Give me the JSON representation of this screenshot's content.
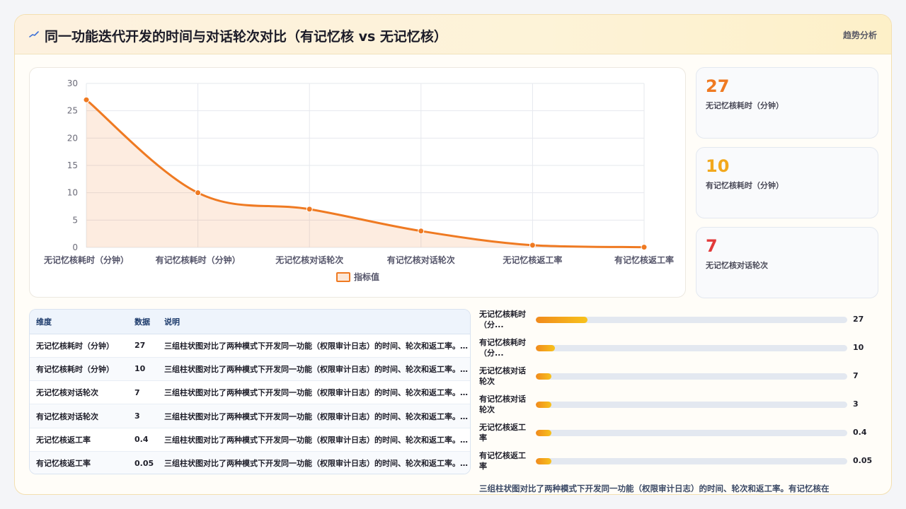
{
  "header": {
    "icon": "trend-line-icon",
    "title": "同一功能迭代开发的时间与对话轮次对比（有记忆核 vs 无记忆核）",
    "tag": "趋势分析"
  },
  "chart_data": {
    "type": "line",
    "categories": [
      "无记忆核耗时（分钟）",
      "有记忆核耗时（分钟）",
      "无记忆核对话轮次",
      "有记忆核对话轮次",
      "无记忆核返工率",
      "有记忆核返工率"
    ],
    "series": [
      {
        "name": "指标值",
        "values": [
          27,
          10,
          7,
          3,
          0.4,
          0.05
        ],
        "color": "#ef7a22"
      }
    ],
    "y_ticks": [
      "0",
      "5",
      "10",
      "15",
      "20",
      "25",
      "30"
    ],
    "ylim": [
      0,
      30
    ],
    "grid": true,
    "legend": "bottom"
  },
  "stats": [
    {
      "value": "27",
      "label": "无记忆核耗时（分钟）",
      "color": "#ef7a22"
    },
    {
      "value": "10",
      "label": "有记忆核耗时（分钟）",
      "color": "#f2a81d"
    },
    {
      "value": "7",
      "label": "无记忆核对话轮次",
      "color": "#e23a3a"
    }
  ],
  "table": {
    "headers": [
      "维度",
      "数据",
      "说明"
    ],
    "rows": [
      [
        "无记忆核耗时（分钟）",
        "27",
        "三组柱状图对比了两种模式下开发同一功能（权限审计日志）的时间、轮次和返工率。有记忆核在"
      ],
      [
        "有记忆核耗时（分钟）",
        "10",
        "三组柱状图对比了两种模式下开发同一功能（权限审计日志）的时间、轮次和返工率。有记忆核在"
      ],
      [
        "无记忆核对话轮次",
        "7",
        "三组柱状图对比了两种模式下开发同一功能（权限审计日志）的时间、轮次和返工率。有记忆核在"
      ],
      [
        "有记忆核对话轮次",
        "3",
        "三组柱状图对比了两种模式下开发同一功能（权限审计日志）的时间、轮次和返工率。有记忆核在"
      ],
      [
        "无记忆核返工率",
        "0.4",
        "三组柱状图对比了两种模式下开发同一功能（权限审计日志）的时间、轮次和返工率。有记忆核在"
      ],
      [
        "有记忆核返工率",
        "0.05",
        "三组柱状图对比了两种模式下开发同一功能（权限审计日志）的时间、轮次和返工率。有记忆核在"
      ]
    ]
  },
  "bars": {
    "max": 27,
    "items": [
      {
        "label": "无记忆核耗时（分...",
        "value": "27",
        "num": 27,
        "fill": 0.165
      },
      {
        "label": "有记忆核耗时（分...",
        "value": "10",
        "num": 10,
        "fill": 0.061
      },
      {
        "label": "无记忆核对话轮次",
        "value": "7",
        "num": 7,
        "fill": 0.05
      },
      {
        "label": "有记忆核对话轮次",
        "value": "3",
        "num": 3,
        "fill": 0.05
      },
      {
        "label": "无记忆核返工率",
        "value": "0.4",
        "num": 0.4,
        "fill": 0.05
      },
      {
        "label": "有记忆核返工率",
        "value": "0.05",
        "num": 0.05,
        "fill": 0.05
      }
    ]
  },
  "note": "三组柱状图对比了两种模式下开发同一功能（权限审计日志）的时间、轮次和返工率。有记忆核在"
}
